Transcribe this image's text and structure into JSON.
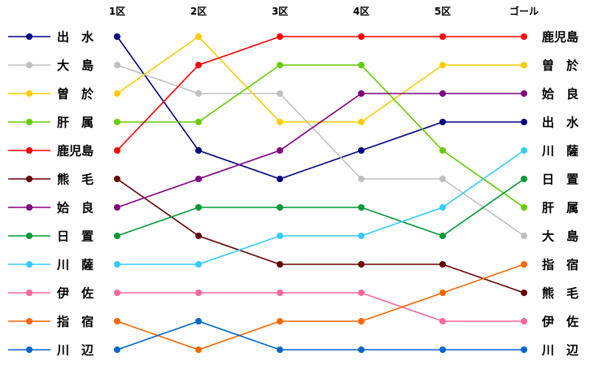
{
  "chart_data": {
    "type": "line",
    "title": "",
    "xlabel": "",
    "ylabel": "",
    "categories": [
      "1区",
      "2区",
      "3区",
      "4区",
      "5区",
      "ゴール"
    ],
    "y_axis": "rank (1 = top)",
    "ylim": [
      1,
      12
    ],
    "grid": false,
    "legend_position": "left",
    "series": [
      {
        "name": "出　水",
        "end_label": "出　水",
        "color": "#000080",
        "values": [
          1,
          5,
          6,
          5,
          4,
          4
        ]
      },
      {
        "name": "大　島",
        "end_label": "大　島",
        "color": "#c0c0c0",
        "values": [
          2,
          3,
          3,
          6,
          6,
          8
        ]
      },
      {
        "name": "曽　於",
        "end_label": "曽　於",
        "color": "#ffcc00",
        "values": [
          3,
          1,
          4,
          4,
          2,
          2
        ]
      },
      {
        "name": "肝　属",
        "end_label": "肝　属",
        "color": "#66cc00",
        "values": [
          4,
          4,
          2,
          2,
          5,
          7
        ]
      },
      {
        "name": "鹿児島",
        "end_label": "鹿児島",
        "color": "#ff0000",
        "values": [
          5,
          2,
          1,
          1,
          1,
          1
        ]
      },
      {
        "name": "熊　毛",
        "end_label": "熊　毛",
        "color": "#660000",
        "values": [
          6,
          8,
          9,
          9,
          9,
          10
        ]
      },
      {
        "name": "姶　良",
        "end_label": "姶　良",
        "color": "#800080",
        "values": [
          7,
          6,
          5,
          3,
          3,
          3
        ]
      },
      {
        "name": "日　置",
        "end_label": "日　置",
        "color": "#009933",
        "values": [
          8,
          7,
          7,
          7,
          8,
          6
        ]
      },
      {
        "name": "川　薩",
        "end_label": "川　薩",
        "color": "#33ccff",
        "values": [
          9,
          9,
          8,
          8,
          7,
          5
        ]
      },
      {
        "name": "伊　佐",
        "end_label": "伊　佐",
        "color": "#ff6699",
        "values": [
          10,
          10,
          10,
          10,
          11,
          11
        ]
      },
      {
        "name": "指　宿",
        "end_label": "指　宿",
        "color": "#ff6600",
        "values": [
          11,
          12,
          11,
          11,
          10,
          9
        ]
      },
      {
        "name": "川　辺",
        "end_label": "川　辺",
        "color": "#0066cc",
        "values": [
          12,
          11,
          12,
          12,
          12,
          12
        ]
      }
    ]
  }
}
